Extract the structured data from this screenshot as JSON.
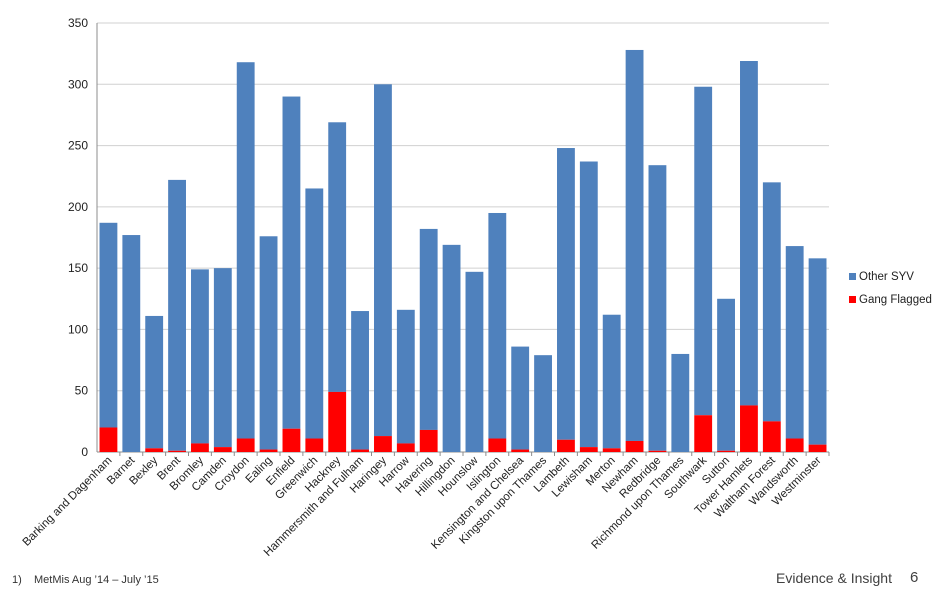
{
  "chart_data": {
    "type": "bar",
    "stacked": true,
    "title": "",
    "xlabel": "",
    "ylabel": "",
    "ylim": [
      0,
      350
    ],
    "yticks": [
      0,
      50,
      100,
      150,
      200,
      250,
      300,
      350
    ],
    "grid": true,
    "legend_position": "right",
    "categories": [
      "Barking and Dagenham",
      "Barnet",
      "Bexley",
      "Brent",
      "Bromley",
      "Camden",
      "Croydon",
      "Ealing",
      "Enfield",
      "Greenwich",
      "Hackney",
      "Hammersmith and Fulham",
      "Haringey",
      "Harrow",
      "Havering",
      "Hillingdon",
      "Hounslow",
      "Islington",
      "Kensington and Chelsea",
      "Kingston upon Thames",
      "Lambeth",
      "Lewisham",
      "Merton",
      "Newham",
      "Redbridge",
      "Richmond upon Thames",
      "Southwark",
      "Sutton",
      "Tower Hamlets",
      "Waltham Forest",
      "Wandsworth",
      "Westminster"
    ],
    "series": [
      {
        "name": "Gang Flagged",
        "color": "#ff0000",
        "values": [
          20,
          0,
          3,
          1,
          7,
          4,
          11,
          2,
          19,
          11,
          49,
          2,
          13,
          7,
          18,
          0,
          0,
          11,
          2,
          0,
          10,
          4,
          3,
          9,
          1,
          0,
          30,
          1,
          38,
          25,
          11,
          6
        ]
      },
      {
        "name": "Other SYV",
        "color": "#4f81bd",
        "values": [
          167,
          177,
          108,
          221,
          142,
          146,
          307,
          174,
          271,
          204,
          220,
          113,
          287,
          109,
          164,
          169,
          147,
          184,
          84,
          79,
          238,
          233,
          109,
          319,
          233,
          80,
          268,
          124,
          281,
          195,
          157,
          152
        ]
      }
    ],
    "legend": [
      "Other SYV",
      "Gang Flagged"
    ]
  },
  "footer": {
    "footnote_number": "1)",
    "footnote_text": "MetMis Aug ’14 – July ’15",
    "brand": "Evidence & Insight",
    "page_number": "6"
  }
}
